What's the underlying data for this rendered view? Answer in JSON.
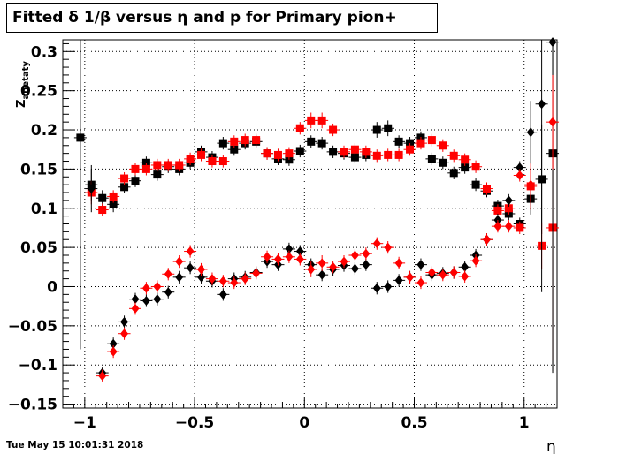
{
  "title": "Fitted δ 1/β versus η and p for Primary pion+",
  "timestamp": "Tue May 15 10:01:31 2018",
  "chart_data": {
    "type": "scatter",
    "xlabel": "η",
    "ylabel": "Z_{abetaty}",
    "xlim": [
      -1.1,
      1.15
    ],
    "ylim": [
      -0.155,
      0.315
    ],
    "grid": true,
    "x_ticks": [
      -1,
      -0.5,
      0,
      0.5,
      1
    ],
    "x_tick_labels": [
      "−1",
      "−0.5",
      "0",
      "0.5",
      "1"
    ],
    "y_ticks": [
      -0.15,
      -0.1,
      -0.05,
      0,
      0.05,
      0.1,
      0.15,
      0.2,
      0.25,
      0.3
    ],
    "y_tick_labels": [
      "−0.15",
      "−0.1",
      "−0.05",
      "0",
      "0.05",
      "0.1",
      "0.15",
      "0.2",
      "0.25",
      "0.3"
    ],
    "series": [
      {
        "marker": "square",
        "color": "#000000",
        "points": [
          [
            -1.02,
            0.19,
            0.27
          ],
          [
            -0.97,
            0.13,
            0.02
          ],
          [
            -0.92,
            0.113,
            0.01
          ],
          [
            -0.87,
            0.105,
            0.01
          ],
          [
            -0.82,
            0.127,
            0.008
          ],
          [
            -0.77,
            0.135,
            0.008
          ],
          [
            -0.72,
            0.158,
            0.008
          ],
          [
            -0.67,
            0.143,
            0.008
          ],
          [
            -0.62,
            0.153,
            0.008
          ],
          [
            -0.57,
            0.15,
            0.008
          ],
          [
            -0.52,
            0.158,
            0.008
          ],
          [
            -0.47,
            0.172,
            0.008
          ],
          [
            -0.42,
            0.165,
            0.008
          ],
          [
            -0.37,
            0.183,
            0.008
          ],
          [
            -0.32,
            0.175,
            0.008
          ],
          [
            -0.27,
            0.183,
            0.008
          ],
          [
            -0.22,
            0.185,
            0.008
          ],
          [
            -0.17,
            0.17,
            0.008
          ],
          [
            -0.12,
            0.163,
            0.008
          ],
          [
            -0.07,
            0.162,
            0.008
          ],
          [
            -0.02,
            0.173,
            0.008
          ],
          [
            0.03,
            0.185,
            0.008
          ],
          [
            0.08,
            0.183,
            0.008
          ],
          [
            0.13,
            0.172,
            0.008
          ],
          [
            0.18,
            0.17,
            0.008
          ],
          [
            0.23,
            0.165,
            0.008
          ],
          [
            0.28,
            0.168,
            0.008
          ],
          [
            0.33,
            0.2,
            0.01
          ],
          [
            0.38,
            0.202,
            0.01
          ],
          [
            0.43,
            0.185,
            0.008
          ],
          [
            0.48,
            0.183,
            0.008
          ],
          [
            0.53,
            0.19,
            0.008
          ],
          [
            0.58,
            0.163,
            0.008
          ],
          [
            0.63,
            0.158,
            0.008
          ],
          [
            0.68,
            0.145,
            0.008
          ],
          [
            0.73,
            0.152,
            0.008
          ],
          [
            0.78,
            0.13,
            0.008
          ],
          [
            0.83,
            0.122,
            0.008
          ],
          [
            0.88,
            0.103,
            0.008
          ],
          [
            0.93,
            0.093,
            0.008
          ],
          [
            0.98,
            0.08,
            0.008
          ],
          [
            1.03,
            0.112,
            0.02
          ],
          [
            1.08,
            0.137,
            0.07
          ],
          [
            1.13,
            0.17,
            0.28
          ]
        ]
      },
      {
        "marker": "square",
        "color": "#ff0000",
        "points": [
          [
            -0.97,
            0.12,
            0.015
          ],
          [
            -0.92,
            0.098,
            0.008
          ],
          [
            -0.87,
            0.115,
            0.008
          ],
          [
            -0.82,
            0.138,
            0.008
          ],
          [
            -0.77,
            0.15,
            0.008
          ],
          [
            -0.72,
            0.15,
            0.008
          ],
          [
            -0.67,
            0.155,
            0.008
          ],
          [
            -0.62,
            0.155,
            0.008
          ],
          [
            -0.57,
            0.155,
            0.008
          ],
          [
            -0.52,
            0.163,
            0.008
          ],
          [
            -0.47,
            0.168,
            0.008
          ],
          [
            -0.42,
            0.16,
            0.008
          ],
          [
            -0.37,
            0.16,
            0.008
          ],
          [
            -0.32,
            0.185,
            0.008
          ],
          [
            -0.27,
            0.187,
            0.008
          ],
          [
            -0.22,
            0.187,
            0.008
          ],
          [
            -0.17,
            0.17,
            0.008
          ],
          [
            -0.12,
            0.168,
            0.008
          ],
          [
            -0.07,
            0.17,
            0.008
          ],
          [
            -0.02,
            0.202,
            0.008
          ],
          [
            0.03,
            0.212,
            0.01
          ],
          [
            0.08,
            0.212,
            0.01
          ],
          [
            0.13,
            0.2,
            0.008
          ],
          [
            0.18,
            0.172,
            0.008
          ],
          [
            0.23,
            0.175,
            0.008
          ],
          [
            0.28,
            0.172,
            0.008
          ],
          [
            0.33,
            0.167,
            0.008
          ],
          [
            0.38,
            0.168,
            0.008
          ],
          [
            0.43,
            0.168,
            0.008
          ],
          [
            0.48,
            0.175,
            0.008
          ],
          [
            0.53,
            0.183,
            0.008
          ],
          [
            0.58,
            0.187,
            0.008
          ],
          [
            0.63,
            0.18,
            0.008
          ],
          [
            0.68,
            0.167,
            0.008
          ],
          [
            0.73,
            0.162,
            0.008
          ],
          [
            0.78,
            0.153,
            0.008
          ],
          [
            0.83,
            0.125,
            0.008
          ],
          [
            0.88,
            0.097,
            0.008
          ],
          [
            0.93,
            0.1,
            0.008
          ],
          [
            0.98,
            0.075,
            0.008
          ],
          [
            1.03,
            0.128,
            0.03
          ],
          [
            1.08,
            0.052,
            0.03
          ],
          [
            1.13,
            0.075,
            0.17
          ]
        ]
      },
      {
        "marker": "diamond",
        "color": "#000000",
        "points": [
          [
            -0.97,
            0.125,
            0.03
          ],
          [
            -0.92,
            -0.11,
            0.008
          ],
          [
            -0.87,
            -0.073,
            0.008
          ],
          [
            -0.82,
            -0.045,
            0.008
          ],
          [
            -0.77,
            -0.016,
            0.008
          ],
          [
            -0.72,
            -0.018,
            0.008
          ],
          [
            -0.67,
            -0.016,
            0.008
          ],
          [
            -0.62,
            -0.007,
            0.008
          ],
          [
            -0.57,
            0.012,
            0.008
          ],
          [
            -0.52,
            0.024,
            0.008
          ],
          [
            -0.47,
            0.012,
            0.008
          ],
          [
            -0.42,
            0.007,
            0.008
          ],
          [
            -0.37,
            -0.01,
            0.008
          ],
          [
            -0.32,
            0.01,
            0.008
          ],
          [
            -0.27,
            0.012,
            0.008
          ],
          [
            -0.22,
            0.018,
            0.008
          ],
          [
            -0.17,
            0.032,
            0.008
          ],
          [
            -0.12,
            0.028,
            0.008
          ],
          [
            -0.07,
            0.048,
            0.008
          ],
          [
            -0.02,
            0.045,
            0.008
          ],
          [
            0.03,
            0.028,
            0.008
          ],
          [
            0.08,
            0.015,
            0.008
          ],
          [
            0.13,
            0.022,
            0.008
          ],
          [
            0.18,
            0.027,
            0.008
          ],
          [
            0.23,
            0.023,
            0.008
          ],
          [
            0.28,
            0.028,
            0.008
          ],
          [
            0.33,
            -0.002,
            0.008
          ],
          [
            0.38,
            0.0,
            0.008
          ],
          [
            0.43,
            0.008,
            0.008
          ],
          [
            0.48,
            0.012,
            0.008
          ],
          [
            0.53,
            0.028,
            0.008
          ],
          [
            0.58,
            0.015,
            0.008
          ],
          [
            0.63,
            0.017,
            0.008
          ],
          [
            0.68,
            0.018,
            0.008
          ],
          [
            0.73,
            0.025,
            0.008
          ],
          [
            0.78,
            0.04,
            0.008
          ],
          [
            0.83,
            0.06,
            0.008
          ],
          [
            0.88,
            0.085,
            0.008
          ],
          [
            0.93,
            0.11,
            0.008
          ],
          [
            0.98,
            0.152,
            0.008
          ],
          [
            1.03,
            0.197,
            0.04
          ],
          [
            1.08,
            0.233,
            0.24
          ],
          [
            1.13,
            0.312,
            0.42
          ]
        ]
      },
      {
        "marker": "diamond",
        "color": "#ff0000",
        "points": [
          [
            -0.92,
            -0.114,
            0.008
          ],
          [
            -0.87,
            -0.083,
            0.008
          ],
          [
            -0.82,
            -0.06,
            0.008
          ],
          [
            -0.77,
            -0.028,
            0.008
          ],
          [
            -0.72,
            -0.002,
            0.008
          ],
          [
            -0.67,
            0.0,
            0.008
          ],
          [
            -0.62,
            0.016,
            0.008
          ],
          [
            -0.57,
            0.032,
            0.008
          ],
          [
            -0.52,
            0.045,
            0.008
          ],
          [
            -0.47,
            0.022,
            0.008
          ],
          [
            -0.42,
            0.01,
            0.008
          ],
          [
            -0.37,
            0.007,
            0.008
          ],
          [
            -0.32,
            0.005,
            0.008
          ],
          [
            -0.27,
            0.01,
            0.008
          ],
          [
            -0.22,
            0.017,
            0.008
          ],
          [
            -0.17,
            0.038,
            0.008
          ],
          [
            -0.12,
            0.035,
            0.008
          ],
          [
            -0.07,
            0.038,
            0.008
          ],
          [
            -0.02,
            0.035,
            0.008
          ],
          [
            0.03,
            0.022,
            0.01
          ],
          [
            0.08,
            0.03,
            0.01
          ],
          [
            0.13,
            0.025,
            0.008
          ],
          [
            0.18,
            0.032,
            0.008
          ],
          [
            0.23,
            0.04,
            0.008
          ],
          [
            0.28,
            0.042,
            0.008
          ],
          [
            0.33,
            0.055,
            0.008
          ],
          [
            0.38,
            0.05,
            0.008
          ],
          [
            0.43,
            0.03,
            0.008
          ],
          [
            0.48,
            0.012,
            0.008
          ],
          [
            0.53,
            0.005,
            0.008
          ],
          [
            0.58,
            0.018,
            0.008
          ],
          [
            0.63,
            0.015,
            0.008
          ],
          [
            0.68,
            0.018,
            0.008
          ],
          [
            0.73,
            0.013,
            0.008
          ],
          [
            0.78,
            0.033,
            0.008
          ],
          [
            0.83,
            0.06,
            0.008
          ],
          [
            0.88,
            0.077,
            0.008
          ],
          [
            0.93,
            0.077,
            0.008
          ],
          [
            0.98,
            0.142,
            0.008
          ],
          [
            1.03,
            0.13,
            0.02
          ],
          [
            1.13,
            0.21,
            0.06
          ]
        ]
      }
    ]
  }
}
